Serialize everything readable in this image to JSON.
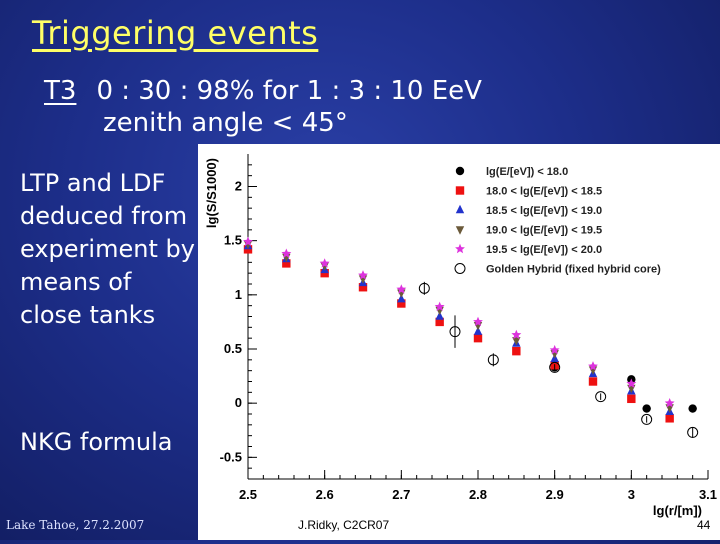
{
  "slide": {
    "title": "Triggering events",
    "trigger_label": "T3",
    "trigger_rates": "0 : 30 : 98%  for  1 : 3 : 10 EeV",
    "zenith": "zenith angle < 45°",
    "side_text": "LTP and LDF deduced from experiment by means of close tanks",
    "nkg": "NKG formula",
    "footer_left": "Lake Tahoe, 27.2.2007",
    "footer_mid": "J.Ridky, C2CR07",
    "footer_right": "44"
  },
  "colors": {
    "title": "#ffff66",
    "background": "#1d2e8a",
    "series": [
      "#000000",
      "#ee1111",
      "#2233cc",
      "#6b5a3a",
      "#dd33dd",
      "#000000"
    ]
  },
  "chart_data": {
    "type": "scatter",
    "xlabel": "lg(r/[m])",
    "ylabel": "lg(S/S1000)",
    "xlim": [
      2.5,
      3.1
    ],
    "ylim": [
      -0.7,
      2.3
    ],
    "xticks": [
      2.5,
      2.6,
      2.7,
      2.8,
      2.9,
      3,
      3.1
    ],
    "yticks": [
      -0.5,
      0,
      0.5,
      1,
      1.5,
      2
    ],
    "legend_position": "top-right",
    "grid": false,
    "series": [
      {
        "name": "lg(E/[eV]) < 18.0",
        "marker": "circle-filled",
        "x": [
          2.9,
          3.0,
          3.02,
          3.08
        ],
        "y": [
          0.33,
          0.22,
          -0.05,
          -0.05
        ]
      },
      {
        "name": "18.0 < lg(E/[eV]) < 18.5",
        "marker": "square",
        "x": [
          2.5,
          2.55,
          2.6,
          2.65,
          2.7,
          2.75,
          2.8,
          2.85,
          2.9,
          2.95,
          3.0,
          3.05
        ],
        "y": [
          1.42,
          1.29,
          1.2,
          1.07,
          0.92,
          0.75,
          0.6,
          0.48,
          0.35,
          0.2,
          0.04,
          -0.14
        ]
      },
      {
        "name": "18.5 < lg(E/[eV]) < 19.0",
        "marker": "triangle",
        "x": [
          2.5,
          2.55,
          2.6,
          2.65,
          2.7,
          2.75,
          2.8,
          2.85,
          2.9,
          2.95,
          3.0,
          3.05
        ],
        "y": [
          1.45,
          1.33,
          1.23,
          1.11,
          0.96,
          0.8,
          0.66,
          0.55,
          0.41,
          0.27,
          0.11,
          -0.08
        ]
      },
      {
        "name": "19.0 < lg(E/[eV]) < 19.5",
        "marker": "triangle-down",
        "x": [
          2.5,
          2.55,
          2.6,
          2.65,
          2.7,
          2.75,
          2.8,
          2.85,
          2.9,
          2.95,
          3.0,
          3.05
        ],
        "y": [
          1.47,
          1.35,
          1.27,
          1.15,
          1.02,
          0.86,
          0.72,
          0.58,
          0.46,
          0.31,
          0.14,
          -0.04
        ]
      },
      {
        "name": "19.5 < lg(E/[eV]) < 20.0",
        "marker": "star",
        "x": [
          2.5,
          2.55,
          2.6,
          2.65,
          2.7,
          2.75,
          2.8,
          2.85,
          2.9,
          2.95,
          3.0,
          3.05
        ],
        "y": [
          1.49,
          1.38,
          1.29,
          1.18,
          1.05,
          0.89,
          0.75,
          0.63,
          0.49,
          0.34,
          0.18,
          0.0
        ]
      },
      {
        "name": "Golden Hybrid (fixed hybrid core)",
        "marker": "circle-open",
        "x": [
          2.73,
          2.77,
          2.82,
          2.9,
          2.96,
          3.02,
          3.08
        ],
        "y": [
          1.06,
          0.66,
          0.4,
          0.33,
          0.06,
          -0.15,
          -0.27
        ],
        "err": [
          0.06,
          0.15,
          0.06,
          0.03,
          0.03,
          0.03,
          0.05
        ]
      }
    ]
  }
}
